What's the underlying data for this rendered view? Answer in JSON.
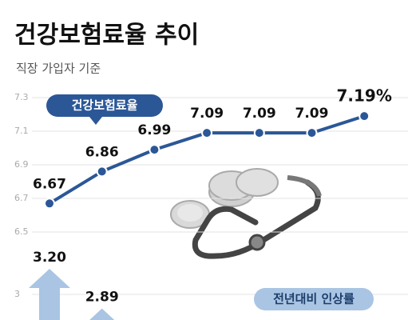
{
  "chart_data": [
    {
      "type": "line",
      "title": "건강보험료율 추이",
      "subtitle": "직장 가입자 기준",
      "categories": [
        null,
        null,
        null,
        null,
        null,
        null,
        null
      ],
      "series": [
        {
          "name": "건강보험료율",
          "color": "#2b5797",
          "values": [
            6.67,
            6.86,
            6.99,
            7.09,
            7.09,
            7.09,
            7.19
          ],
          "value_labels": [
            "6.67",
            "6.86",
            "6.99",
            "7.09",
            "7.09",
            "7.09",
            "7.19%"
          ]
        }
      ],
      "ylim": [
        6.5,
        7.3
      ],
      "yticks": [
        7.3,
        7.1,
        6.9,
        6.7,
        6.5
      ],
      "grid": true
    },
    {
      "type": "bar",
      "categories": [
        null,
        null
      ],
      "series": [
        {
          "name": "전년대비 인상률",
          "color": "#a9c5e3",
          "values": [
            3.2,
            2.89
          ],
          "value_labels": [
            "3.20",
            "2.89"
          ]
        }
      ],
      "ylim": [
        2.8,
        3.3
      ],
      "yticks": [
        3
      ],
      "grid": true
    }
  ]
}
